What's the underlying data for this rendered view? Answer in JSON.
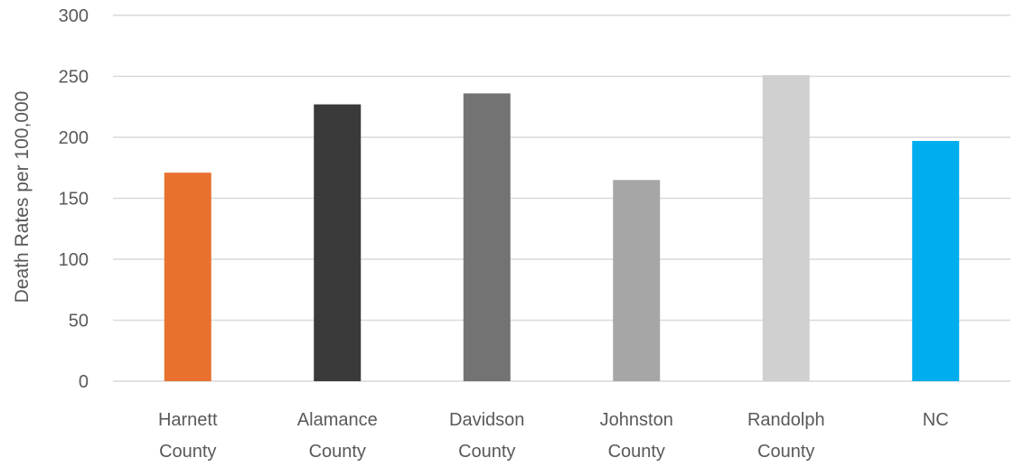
{
  "chart_data": {
    "type": "bar",
    "title": "",
    "xlabel": "",
    "ylabel": "Death Rates per 100,000",
    "ylim": [
      0,
      300
    ],
    "yticks": [
      0,
      50,
      100,
      150,
      200,
      250,
      300
    ],
    "grid": true,
    "legend": "none",
    "categories": [
      [
        "Harnett",
        "County"
      ],
      [
        "Alamance",
        "County"
      ],
      [
        "Davidson",
        "County"
      ],
      [
        "Johnston",
        "County"
      ],
      [
        "Randolph",
        "County"
      ],
      [
        "NC"
      ]
    ],
    "values": [
      171,
      227,
      236,
      165,
      251,
      197
    ],
    "colors": [
      "#e87130",
      "#3a3a3a",
      "#737373",
      "#a6a6a6",
      "#d0d0d0",
      "#00adef"
    ]
  }
}
